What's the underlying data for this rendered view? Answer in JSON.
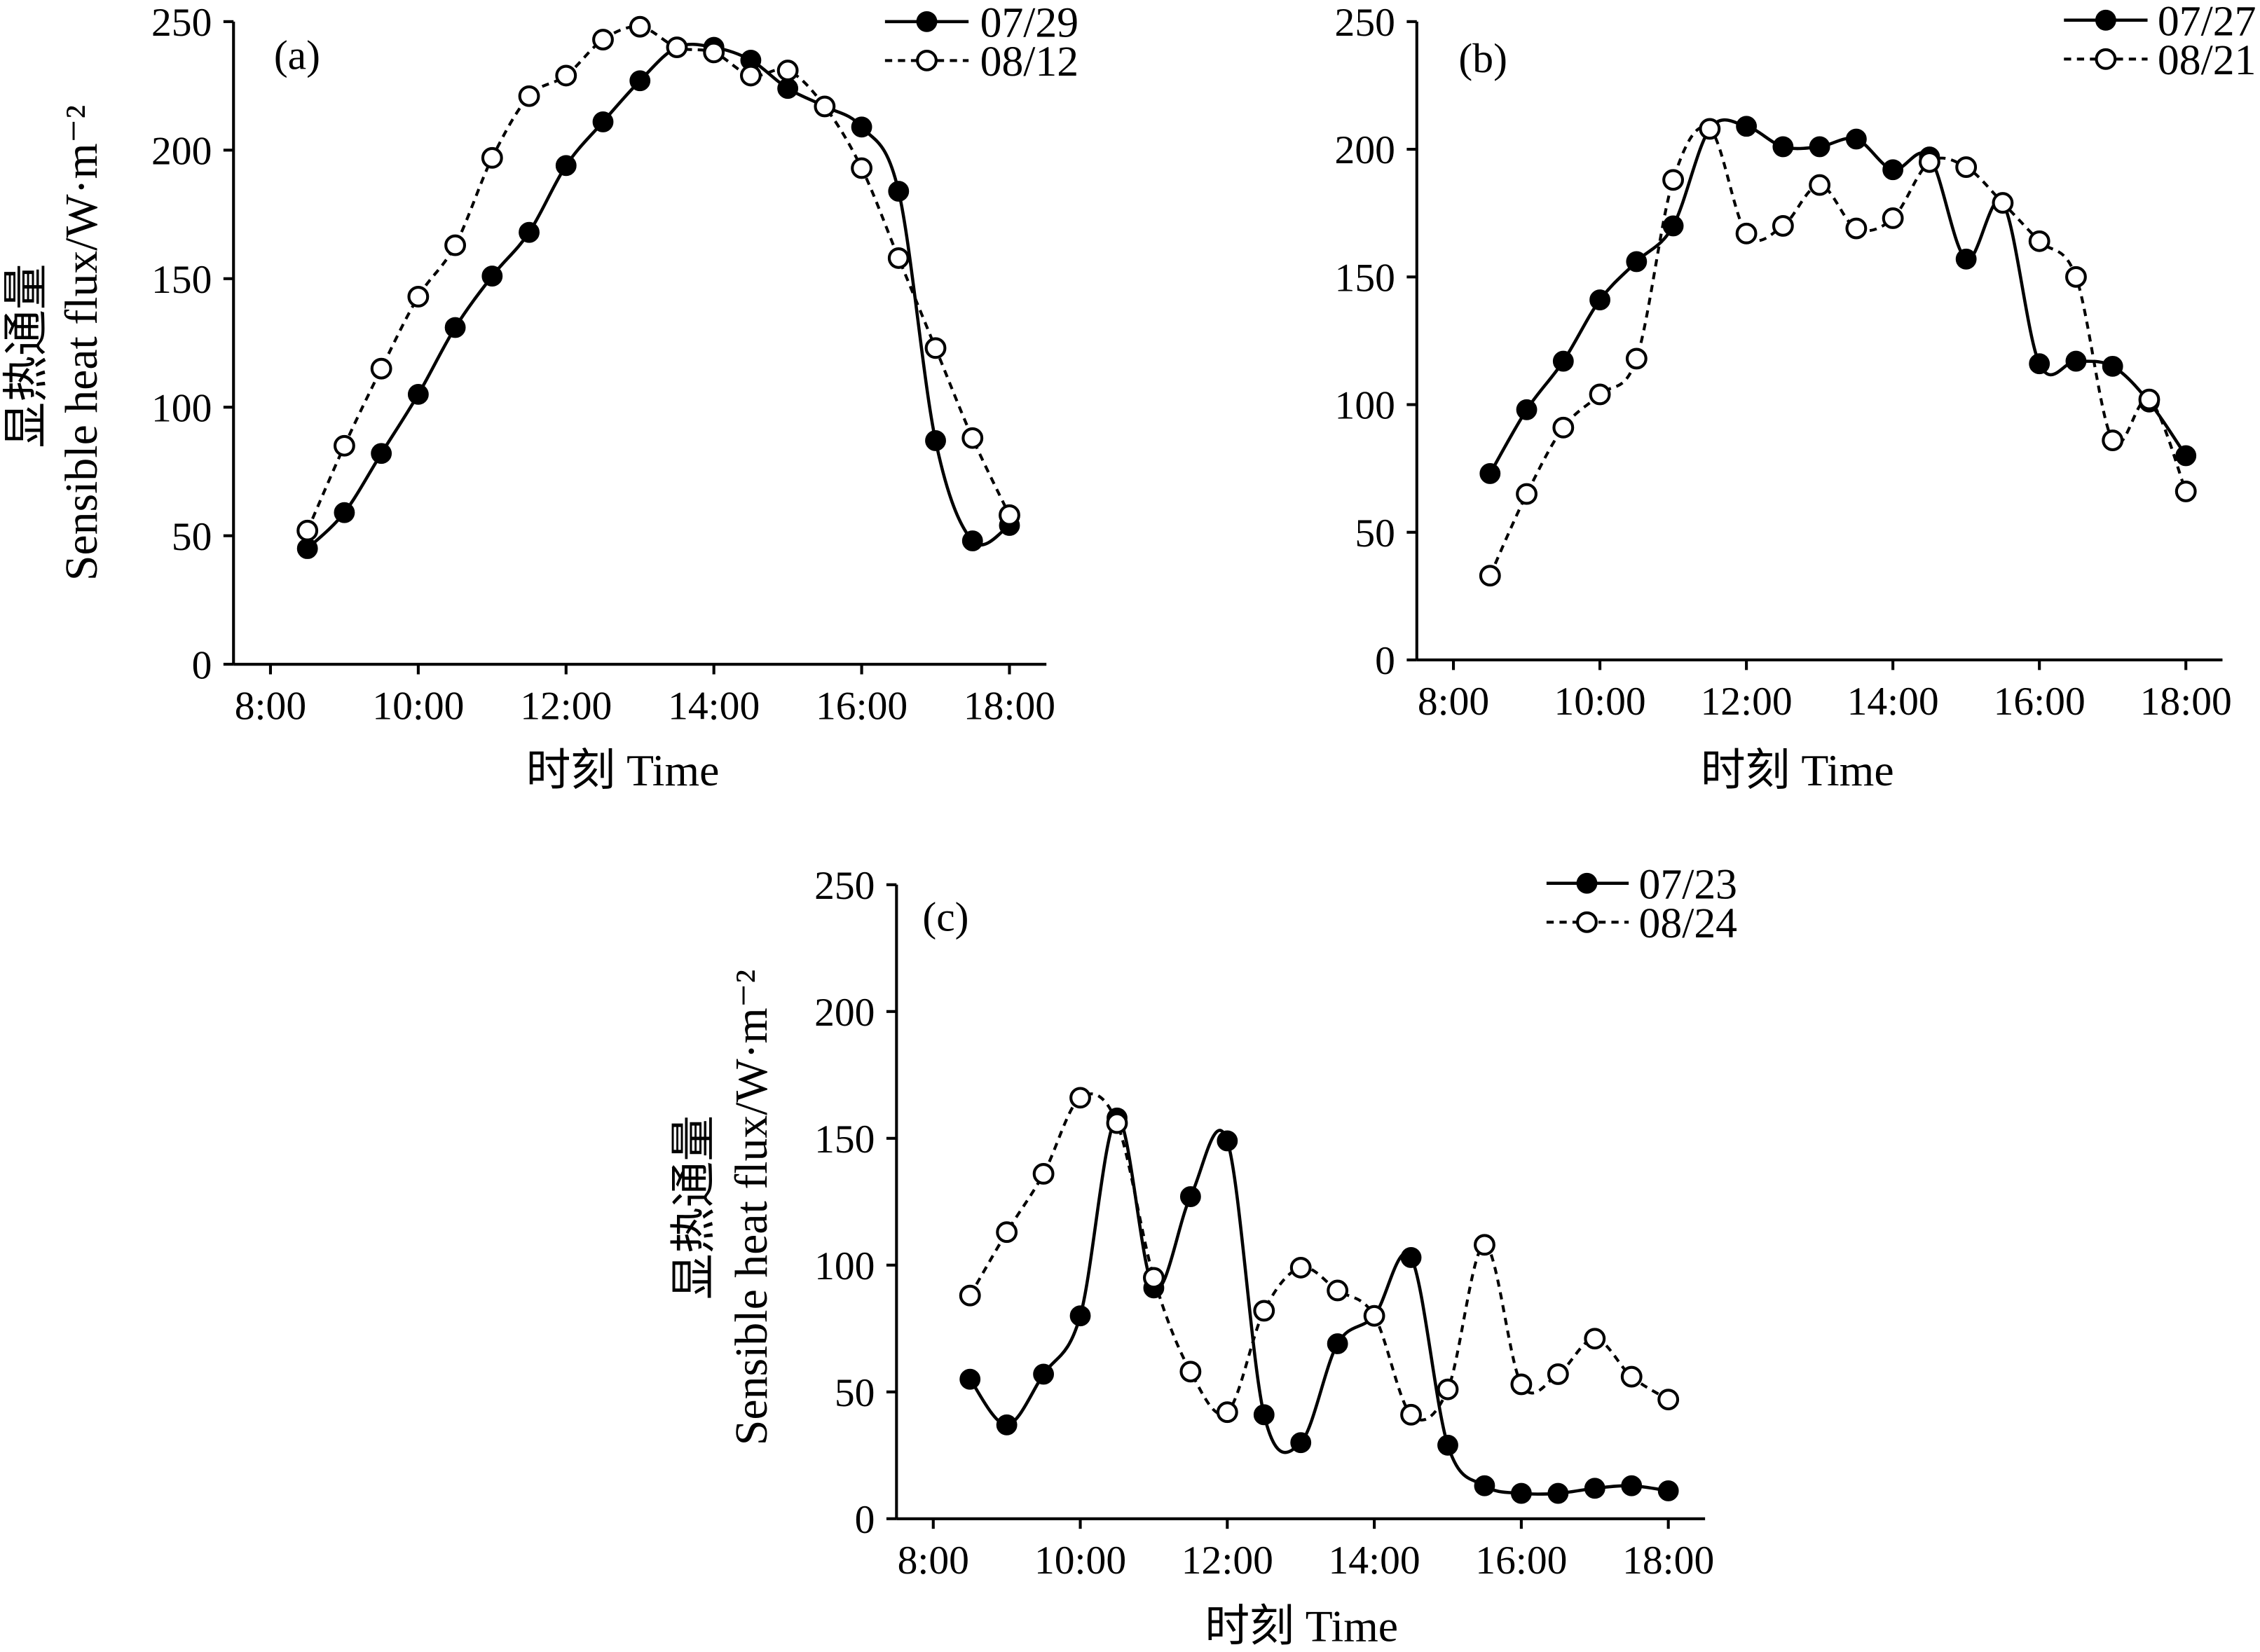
{
  "colors": {
    "ink": "#000000",
    "background": "#ffffff"
  },
  "chart_data": [
    {
      "type": "line",
      "panel": "(a)",
      "xlabel": "时刻 Time",
      "ylabel": [
        "显热通量",
        "Sensible heat flux/W·m⁻²"
      ],
      "xlim": [
        7.5,
        18.5
      ],
      "ylim": [
        0,
        250
      ],
      "grid": false,
      "legend": "top-right",
      "xticks": [
        "8:00",
        "10:00",
        "12:00",
        "14:00",
        "16:00",
        "18:00"
      ],
      "yticks": [
        0,
        50,
        100,
        150,
        200,
        250
      ],
      "x": [
        8.5,
        9,
        9.5,
        10,
        10.5,
        11,
        11.5,
        12,
        12.5,
        13,
        13.5,
        14,
        14.5,
        15,
        15.5,
        16,
        16.5,
        17,
        17.5,
        18
      ],
      "series": [
        {
          "name": "07/29",
          "values": [
            45,
            59,
            82,
            105,
            131,
            151,
            168,
            194,
            211,
            227,
            240,
            240,
            235,
            224,
            217,
            209,
            184,
            87,
            48,
            54
          ]
        },
        {
          "name": "08/12",
          "values": [
            52,
            85,
            115,
            143,
            163,
            197,
            221,
            229,
            243,
            248,
            240,
            238,
            229,
            231,
            217,
            193,
            158,
            123,
            88,
            58
          ]
        }
      ]
    },
    {
      "type": "line",
      "panel": "(b)",
      "xlabel": "时刻 Time",
      "ylabel": [],
      "xlim": [
        7.5,
        18.5
      ],
      "ylim": [
        0,
        250
      ],
      "grid": false,
      "legend": "top-right",
      "xticks": [
        "8:00",
        "10:00",
        "12:00",
        "14:00",
        "16:00",
        "18:00"
      ],
      "yticks": [
        0,
        50,
        100,
        150,
        200,
        250
      ],
      "x": [
        8.5,
        9,
        9.5,
        10,
        10.5,
        11,
        11.5,
        12,
        12.5,
        13,
        13.5,
        14,
        14.5,
        15,
        15.5,
        16,
        16.5,
        17,
        17.5,
        18
      ],
      "series": [
        {
          "name": "07/27",
          "values": [
            73,
            98,
            117,
            141,
            156,
            170,
            208,
            209,
            201,
            201,
            204,
            192,
            197,
            157,
            179,
            116,
            117,
            115,
            101,
            80
          ]
        },
        {
          "name": "08/21",
          "values": [
            33,
            65,
            91,
            104,
            118,
            188,
            208,
            167,
            170,
            186,
            169,
            173,
            195,
            193,
            179,
            164,
            150,
            86,
            102,
            66
          ]
        }
      ]
    },
    {
      "type": "line",
      "panel": "(c)",
      "xlabel": "时刻 Time",
      "ylabel": [
        "显热通量",
        "Sensible heat flux/W·m⁻²"
      ],
      "xlim": [
        7.5,
        18.5
      ],
      "ylim": [
        0,
        250
      ],
      "grid": false,
      "legend": "top-right",
      "xticks": [
        "8:00",
        "10:00",
        "12:00",
        "14:00",
        "16:00",
        "18:00"
      ],
      "yticks": [
        0,
        50,
        100,
        150,
        200,
        250
      ],
      "x": [
        8.5,
        9,
        9.5,
        10,
        10.5,
        11,
        11.5,
        12,
        12.5,
        13,
        13.5,
        14,
        14.5,
        15,
        15.5,
        16,
        16.5,
        17,
        17.5,
        18
      ],
      "series": [
        {
          "name": "07/23",
          "values": [
            55,
            37,
            57,
            80,
            158,
            91,
            127,
            149,
            41,
            30,
            69,
            80,
            103,
            29,
            13,
            10,
            10,
            12,
            13,
            11
          ]
        },
        {
          "name": "08/24",
          "values": [
            88,
            113,
            136,
            166,
            156,
            95,
            58,
            42,
            82,
            99,
            90,
            80,
            41,
            51,
            108,
            53,
            57,
            71,
            56,
            47
          ]
        }
      ]
    }
  ]
}
